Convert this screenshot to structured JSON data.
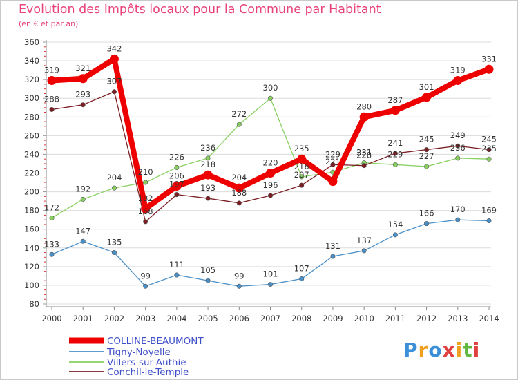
{
  "title": "Evolution des Impôts locaux pour la Commune par Habitant",
  "subtitle": "(en € et par an)",
  "logo_text": "Proxiti",
  "colors": {
    "title": "#e8447a",
    "axis_text": "#333333",
    "grid": "#dcdcdc"
  },
  "chart_data": {
    "type": "line",
    "title": "Evolution des Impôts locaux pour la Commune par Habitant",
    "ylabel": "(en € et par an)",
    "xlabel": "",
    "ylim": [
      80,
      360
    ],
    "yticks": [
      80,
      100,
      120,
      140,
      160,
      180,
      200,
      220,
      240,
      260,
      280,
      300,
      320,
      340,
      360
    ],
    "categories": [
      "2000",
      "2001",
      "2002",
      "2003",
      "2004",
      "2005",
      "2006",
      "2007",
      "2008",
      "2009",
      "2010",
      "2011",
      "2012",
      "2013",
      "2014"
    ],
    "grid": true,
    "legend_position": "bottom-left",
    "series": [
      {
        "name": "COLLINE-BEAUMONT",
        "color": "#ee0000",
        "thick": true,
        "values": [
          319,
          321,
          342,
          182,
          206,
          218,
          204,
          220,
          235,
          211,
          280,
          287,
          301,
          319,
          331
        ],
        "labels": [
          "319",
          "321",
          "342",
          "182",
          "206",
          "218",
          "204",
          "220",
          "235",
          "",
          "280",
          "287",
          "301",
          "319",
          "331"
        ]
      },
      {
        "name": "Tigny-Noyelle",
        "color": "#4a90c8",
        "thick": false,
        "values": [
          133,
          147,
          135,
          99,
          111,
          105,
          99,
          101,
          107,
          131,
          137,
          154,
          166,
          170,
          169
        ],
        "labels": [
          "133",
          "147",
          "135",
          "99",
          "111",
          "105",
          "99",
          "101",
          "107",
          "131",
          "137",
          "154",
          "166",
          "170",
          "169"
        ]
      },
      {
        "name": "Villers-sur-Authie",
        "color": "#88d060",
        "thick": false,
        "values": [
          172,
          192,
          204,
          210,
          226,
          236,
          272,
          300,
          216,
          221,
          231,
          229,
          227,
          236,
          235
        ],
        "labels": [
          "172",
          "192",
          "204",
          "210",
          "226",
          "236",
          "272",
          "300",
          "216",
          "221",
          "231",
          "229",
          "227",
          "236",
          "235"
        ]
      },
      {
        "name": "Conchil-le-Temple",
        "color": "#7a1e22",
        "thick": false,
        "values": [
          288,
          293,
          307,
          168,
          197,
          193,
          188,
          196,
          207,
          229,
          228,
          241,
          245,
          249,
          245
        ],
        "labels": [
          "288",
          "293",
          "307",
          "168",
          "197",
          "193",
          "188",
          "196",
          "207",
          "229",
          "228",
          "241",
          "245",
          "249",
          "245"
        ]
      }
    ]
  }
}
